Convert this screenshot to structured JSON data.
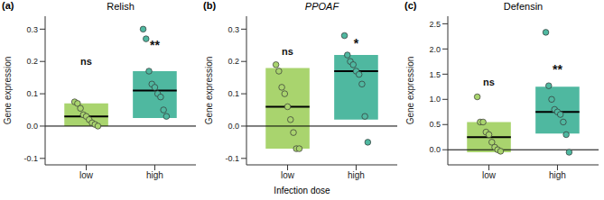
{
  "chart_data": [
    {
      "type": "box",
      "panel_label": "(a)",
      "title": "Relish",
      "ylabel": "Gene expression",
      "categories": [
        "low",
        "high"
      ],
      "colors": [
        "#a9d46e",
        "#4fb8a0"
      ],
      "ylim": [
        -0.12,
        0.34
      ],
      "yticks": [
        -0.1,
        {
          "value": 0,
          "label": "0.0"
        },
        0.1,
        0.2,
        0.3
      ],
      "hline": 0,
      "boxes": [
        {
          "category": "low",
          "lower": 0.0,
          "median": 0.03,
          "upper": 0.07,
          "points": [
            0.075,
            0.07,
            0.055,
            0.035,
            0.03,
            0.02,
            0.01,
            0.005,
            0.0
          ]
        },
        {
          "category": "high",
          "lower": 0.025,
          "median": 0.11,
          "upper": 0.17,
          "points": [
            0.3,
            0.27,
            0.17,
            0.13,
            0.12,
            0.1,
            0.09,
            0.05,
            0.03
          ]
        }
      ],
      "annotations": [
        {
          "category": "low",
          "text": "ns",
          "y": 0.2
        },
        {
          "category": "high",
          "text": "**",
          "y": 0.25
        }
      ]
    },
    {
      "type": "box",
      "panel_label": "(b)",
      "title": "PPOAF",
      "ylabel": "Gene expression",
      "xlabel": "Infection dose",
      "categories": [
        "low",
        "high"
      ],
      "colors": [
        "#a9d46e",
        "#4fb8a0"
      ],
      "ylim": [
        -0.12,
        0.34
      ],
      "yticks": [
        -0.1,
        {
          "value": 0,
          "label": "0.0"
        },
        0.1,
        0.2,
        0.3
      ],
      "hline": 0,
      "boxes": [
        {
          "category": "low",
          "lower": -0.07,
          "median": 0.06,
          "upper": 0.18,
          "points": [
            0.19,
            0.17,
            0.12,
            0.1,
            0.06,
            0.02,
            -0.02,
            -0.07,
            -0.07
          ]
        },
        {
          "category": "high",
          "lower": 0.02,
          "median": 0.17,
          "upper": 0.22,
          "points": [
            0.28,
            0.22,
            0.2,
            0.19,
            0.17,
            0.16,
            0.13,
            0.03,
            -0.05
          ]
        }
      ],
      "annotations": [
        {
          "category": "low",
          "text": "ns",
          "y": 0.23
        },
        {
          "category": "high",
          "text": "*",
          "y": 0.255
        }
      ]
    },
    {
      "type": "box",
      "panel_label": "(c)",
      "title": "Defensin",
      "ylabel": "Gene expression",
      "categories": [
        "low",
        "high"
      ],
      "colors": [
        "#a9d46e",
        "#4fb8a0"
      ],
      "ylim": [
        -0.3,
        2.65
      ],
      "yticks": [
        {
          "value": 0,
          "label": "0.0"
        },
        0.5,
        {
          "value": 1,
          "label": "1.0"
        },
        1.5,
        {
          "value": 2,
          "label": "2.0"
        },
        2.5
      ],
      "hline": 0,
      "boxes": [
        {
          "category": "low",
          "lower": -0.05,
          "median": 0.25,
          "upper": 0.55,
          "points": [
            1.05,
            0.55,
            0.55,
            0.35,
            0.3,
            0.15,
            0.05,
            0.0,
            -0.03
          ]
        },
        {
          "category": "high",
          "lower": 0.32,
          "median": 0.75,
          "upper": 1.25,
          "points": [
            2.33,
            1.27,
            1.0,
            0.8,
            0.75,
            0.7,
            0.55,
            0.3,
            -0.05
          ]
        }
      ],
      "annotations": [
        {
          "category": "low",
          "text": "ns",
          "y": 1.35
        },
        {
          "category": "high",
          "text": "**",
          "y": 1.6
        }
      ]
    }
  ]
}
